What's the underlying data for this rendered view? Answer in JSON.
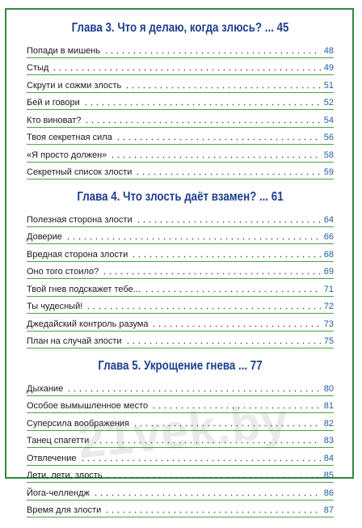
{
  "chapters": [
    {
      "heading": "Глава 3. Что я делаю, когда злюсь? ... 45",
      "entries": [
        {
          "title": "Попади в мишень",
          "page": "48"
        },
        {
          "title": "Стыд",
          "page": "49"
        },
        {
          "title": "Скрути и сожми злость",
          "page": "51"
        },
        {
          "title": "Бей и говори",
          "page": "52"
        },
        {
          "title": "Кто виноват?",
          "page": "54"
        },
        {
          "title": "Твоя секретная сила",
          "page": "56"
        },
        {
          "title": "«Я просто должен»",
          "page": "58"
        },
        {
          "title": "Секретный список злости",
          "page": "59"
        }
      ]
    },
    {
      "heading": "Глава 4. Что злость даёт взамен? ... 61",
      "entries": [
        {
          "title": "Полезная сторона злости",
          "page": "64"
        },
        {
          "title": "Доверие",
          "page": "66"
        },
        {
          "title": "Вредная сторона злости",
          "page": "68"
        },
        {
          "title": "Оно того стоило?",
          "page": "69"
        },
        {
          "title": "Твой гнев подскажет тебе...",
          "page": "71"
        },
        {
          "title": "Ты чудесный!",
          "page": "72"
        },
        {
          "title": "Джедайский контроль разума",
          "page": "73"
        },
        {
          "title": "План на случай злости",
          "page": "75"
        }
      ]
    },
    {
      "heading": "Глава 5. Укрощение гнева ... 77",
      "entries": [
        {
          "title": "Дыхание",
          "page": "80"
        },
        {
          "title": "Особое вымышленное место",
          "page": "81"
        },
        {
          "title": "Суперсила воображения",
          "page": "82"
        },
        {
          "title": "Танец спагетти",
          "page": "83"
        },
        {
          "title": "Отвлечение",
          "page": "84"
        },
        {
          "title": "Лети, лети, злость",
          "page": "85"
        },
        {
          "title": "Йога-челлендж",
          "page": "86"
        },
        {
          "title": "Время для злости",
          "page": "87"
        }
      ]
    }
  ],
  "watermark": "21vek.by",
  "colors": {
    "heading": "#1f3f8f",
    "rule": "#49a244",
    "frame": "#2e8b3e",
    "page_number": "#1f5f9a"
  }
}
